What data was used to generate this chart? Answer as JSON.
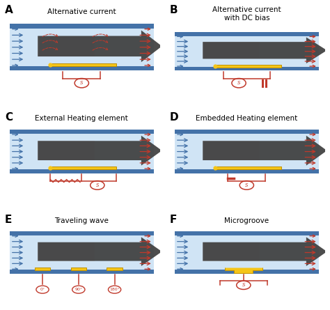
{
  "bg_color": "#ffffff",
  "channel_light": "#d0e4f5",
  "channel_mid": "#b8d0e8",
  "channel_border": "#4472a8",
  "arrow_blue": "#4472a8",
  "arrow_red": "#c0392b",
  "electrode_color": "#f5c518",
  "circuit_color": "#c0392b",
  "panel_labels": [
    "A",
    "B",
    "C",
    "D",
    "E",
    "F"
  ],
  "panel_titles": [
    "Alternative current",
    "Alternative current\nwith DC bias",
    "External Heating element",
    "Embedded Heating element",
    "Traveling wave",
    "Microgroove"
  ],
  "title_fontsize": 7.5,
  "label_fontsize": 11
}
